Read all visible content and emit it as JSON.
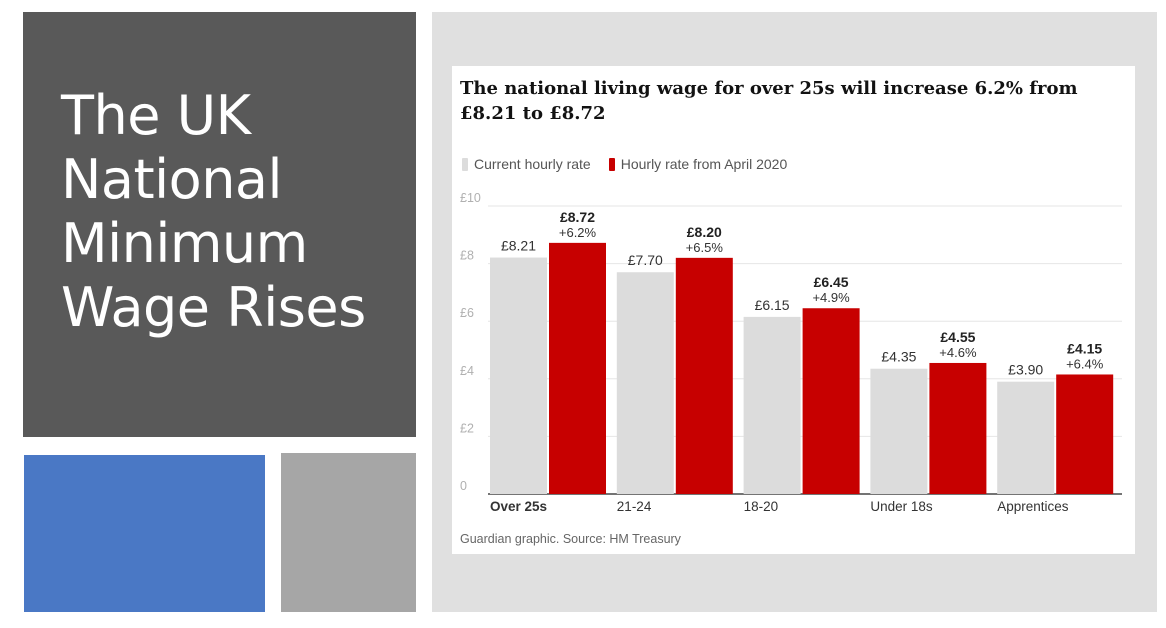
{
  "slide": {
    "title_lines": [
      "The UK",
      "National",
      "Minimum",
      "Wage Rises"
    ]
  },
  "chart_data": {
    "type": "bar",
    "title": "The national living wage for over 25s will increase 6.2% from £8.21 to £8.72",
    "source": "Guardian graphic. Source: HM Treasury",
    "categories": [
      "Over 25s",
      "21-24",
      "18-20",
      "Under 18s",
      "Apprentices"
    ],
    "series": [
      {
        "name": "Current hourly rate",
        "color": "#dcdcdc",
        "values": [
          8.21,
          7.7,
          6.15,
          4.35,
          3.9
        ],
        "labels": [
          "£8.21",
          "£7.70",
          "£6.15",
          "£4.35",
          "£3.90"
        ]
      },
      {
        "name": "Hourly rate from April 2020",
        "color": "#c70000",
        "values": [
          8.72,
          8.2,
          6.45,
          4.55,
          4.15
        ],
        "labels": [
          "£8.72",
          "£8.20",
          "£6.45",
          "£4.55",
          "£4.15"
        ],
        "changes": [
          "+6.2%",
          "+6.5%",
          "+4.9%",
          "+4.6%",
          "+6.4%"
        ]
      }
    ],
    "y_ticks": [
      {
        "value": 10,
        "label": "£10"
      },
      {
        "value": 8,
        "label": "£8"
      },
      {
        "value": 6,
        "label": "£6"
      },
      {
        "value": 4,
        "label": "£4"
      },
      {
        "value": 2,
        "label": "£2"
      },
      {
        "value": 0,
        "label": "0"
      }
    ],
    "ylim": [
      0,
      10
    ],
    "grid": true,
    "legend_position": "top-left"
  }
}
